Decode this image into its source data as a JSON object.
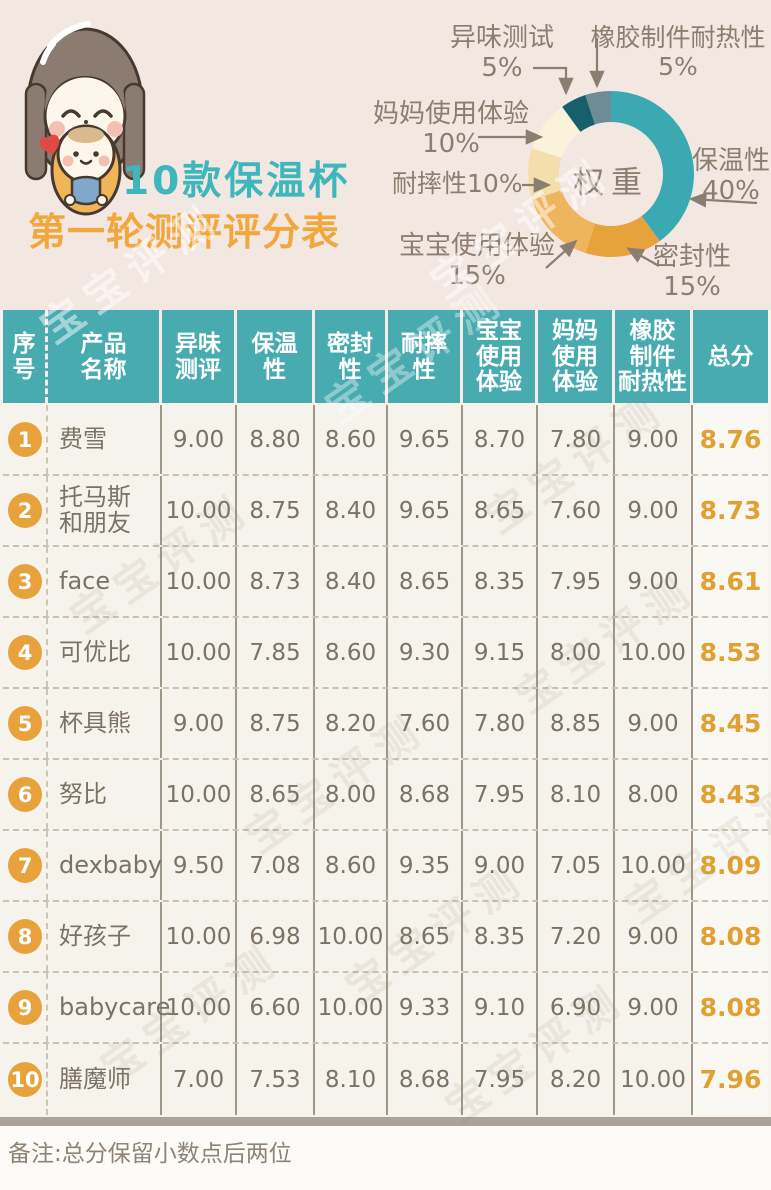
{
  "title": {
    "line1": "10款保温杯",
    "line2": "第一轮测评评分表"
  },
  "watermark": {
    "text": "宝宝评测"
  },
  "chart_data": {
    "type": "pie",
    "subtype": "donut",
    "center_label": "权重",
    "legend_position": "around",
    "slices": [
      {
        "label": "保温性",
        "pct": 40,
        "pct_label": "40%",
        "color": "#3aa9b2"
      },
      {
        "label": "密封性",
        "pct": 15,
        "pct_label": "15%",
        "color": "#e8a23c"
      },
      {
        "label": "宝宝使用体验",
        "pct": 15,
        "pct_label": "15%",
        "color": "#efb55e"
      },
      {
        "label": "耐摔性",
        "pct": 10,
        "pct_label": "10%",
        "color": "#f4dfac"
      },
      {
        "label": "妈妈使用体验",
        "pct": 10,
        "pct_label": "10%",
        "color": "#faf2da"
      },
      {
        "label": "异味测试",
        "pct": 5,
        "pct_label": "5%",
        "color": "#15606a"
      },
      {
        "label": "橡胶制件耐热性",
        "pct": 5,
        "pct_label": "5%",
        "color": "#6d8c95"
      }
    ]
  },
  "table": {
    "headers": [
      "序\n号",
      "产品\n名称",
      "异味\n测评",
      "保温\n性",
      "密封\n性",
      "耐摔\n性",
      "宝宝\n使用\n体验",
      "妈妈\n使用\n体验",
      "橡胶\n制件\n耐热性",
      "总分"
    ],
    "rows": [
      {
        "rank": "1",
        "name": "费雪",
        "scores": [
          "9.00",
          "8.80",
          "8.60",
          "9.65",
          "8.70",
          "7.80",
          "9.00"
        ],
        "total": "8.76"
      },
      {
        "rank": "2",
        "name": "托马斯\n和朋友",
        "scores": [
          "10.00",
          "8.75",
          "8.40",
          "9.65",
          "8.65",
          "7.60",
          "9.00"
        ],
        "total": "8.73"
      },
      {
        "rank": "3",
        "name": "face",
        "scores": [
          "10.00",
          "8.73",
          "8.40",
          "8.65",
          "8.35",
          "7.95",
          "9.00"
        ],
        "total": "8.61"
      },
      {
        "rank": "4",
        "name": "可优比",
        "scores": [
          "10.00",
          "7.85",
          "8.60",
          "9.30",
          "9.15",
          "8.00",
          "10.00"
        ],
        "total": "8.53"
      },
      {
        "rank": "5",
        "name": "杯具熊",
        "scores": [
          "9.00",
          "8.75",
          "8.20",
          "7.60",
          "7.80",
          "8.85",
          "9.00"
        ],
        "total": "8.45"
      },
      {
        "rank": "6",
        "name": "努比",
        "scores": [
          "10.00",
          "8.65",
          "8.00",
          "8.68",
          "7.95",
          "8.10",
          "8.00"
        ],
        "total": "8.43"
      },
      {
        "rank": "7",
        "name": "dexbaby",
        "scores": [
          "9.50",
          "7.08",
          "8.60",
          "9.35",
          "9.00",
          "7.05",
          "10.00"
        ],
        "total": "8.09"
      },
      {
        "rank": "8",
        "name": "好孩子",
        "scores": [
          "10.00",
          "6.98",
          "10.00",
          "8.65",
          "8.35",
          "7.20",
          "9.00"
        ],
        "total": "8.08"
      },
      {
        "rank": "9",
        "name": "babycare",
        "scores": [
          "10.00",
          "6.60",
          "10.00",
          "9.33",
          "9.10",
          "6.90",
          "9.00"
        ],
        "total": "8.08"
      },
      {
        "rank": "10",
        "name": "膳魔师",
        "scores": [
          "7.00",
          "7.53",
          "8.10",
          "8.68",
          "7.95",
          "8.20",
          "10.00"
        ],
        "total": "7.96"
      }
    ]
  },
  "footnote": "备注:总分保留小数点后两位",
  "colors": {
    "background_top": "#f3e7e2",
    "background_table": "#f6f3ec",
    "header_teal": "#47abb0",
    "accent_orange": "#e8a23c",
    "title_teal": "#3db6bc",
    "title_orange": "#f2a73d",
    "text_brown": "#7b7164"
  }
}
